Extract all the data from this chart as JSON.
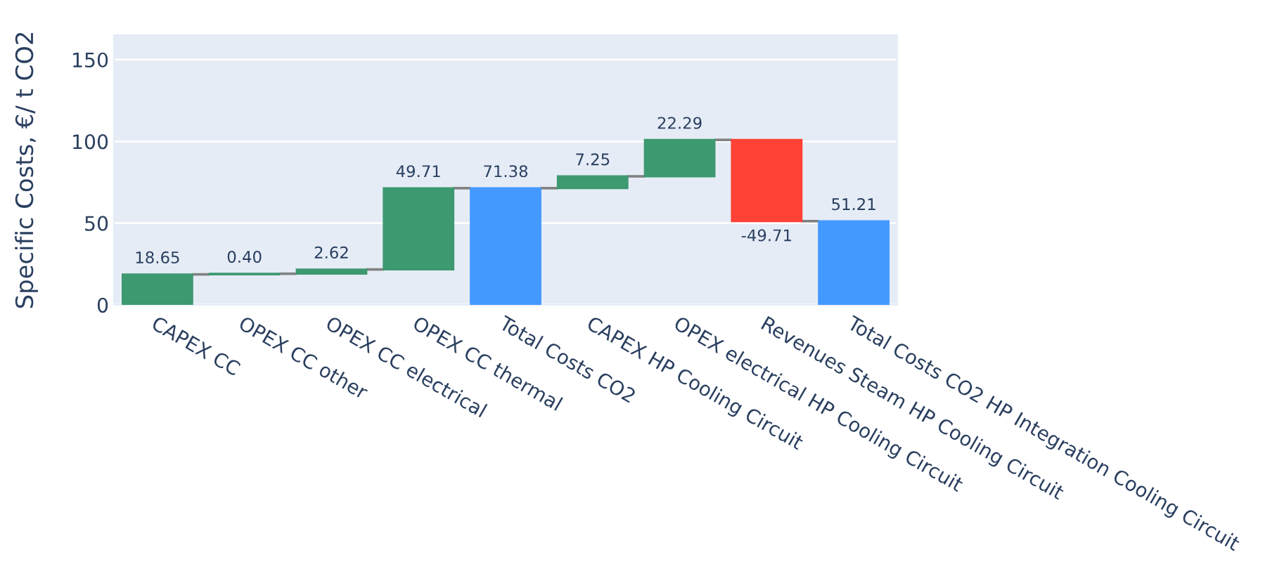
{
  "chart_data": {
    "type": "bar",
    "ylabel": "Specific Costs, €/ t CO2",
    "categories": [
      "CAPEX CC",
      "OPEX CC other",
      "OPEX CC electrical",
      "OPEX CC thermal",
      "Total Costs CO2",
      "CAPEX HP Cooling Circuit",
      "OPEX electrical HP Cooling Circuit",
      "Revenues Steam HP Cooling Circuit",
      "Total Costs CO2 HP Integration Cooling Circuit"
    ],
    "values": [
      18.65,
      0.4,
      2.62,
      49.71,
      71.38,
      7.25,
      22.29,
      -49.71,
      51.21
    ],
    "base": [
      0,
      18.65,
      19.05,
      21.67,
      0,
      71.38,
      78.63,
      100.92,
      0
    ],
    "colors": [
      "#3d9970",
      "#3d9970",
      "#3d9970",
      "#3d9970",
      "#4499ff",
      "#3d9970",
      "#3d9970",
      "#ff4136",
      "#4499ff"
    ],
    "value_labels": [
      "18.65",
      "0.40",
      "2.62",
      "49.71",
      "71.38",
      "7.25",
      "22.29",
      "-49.71",
      "51.21"
    ],
    "ylim": [
      0,
      165
    ],
    "yticks": [
      0,
      50,
      100,
      150
    ],
    "grid": "y"
  }
}
